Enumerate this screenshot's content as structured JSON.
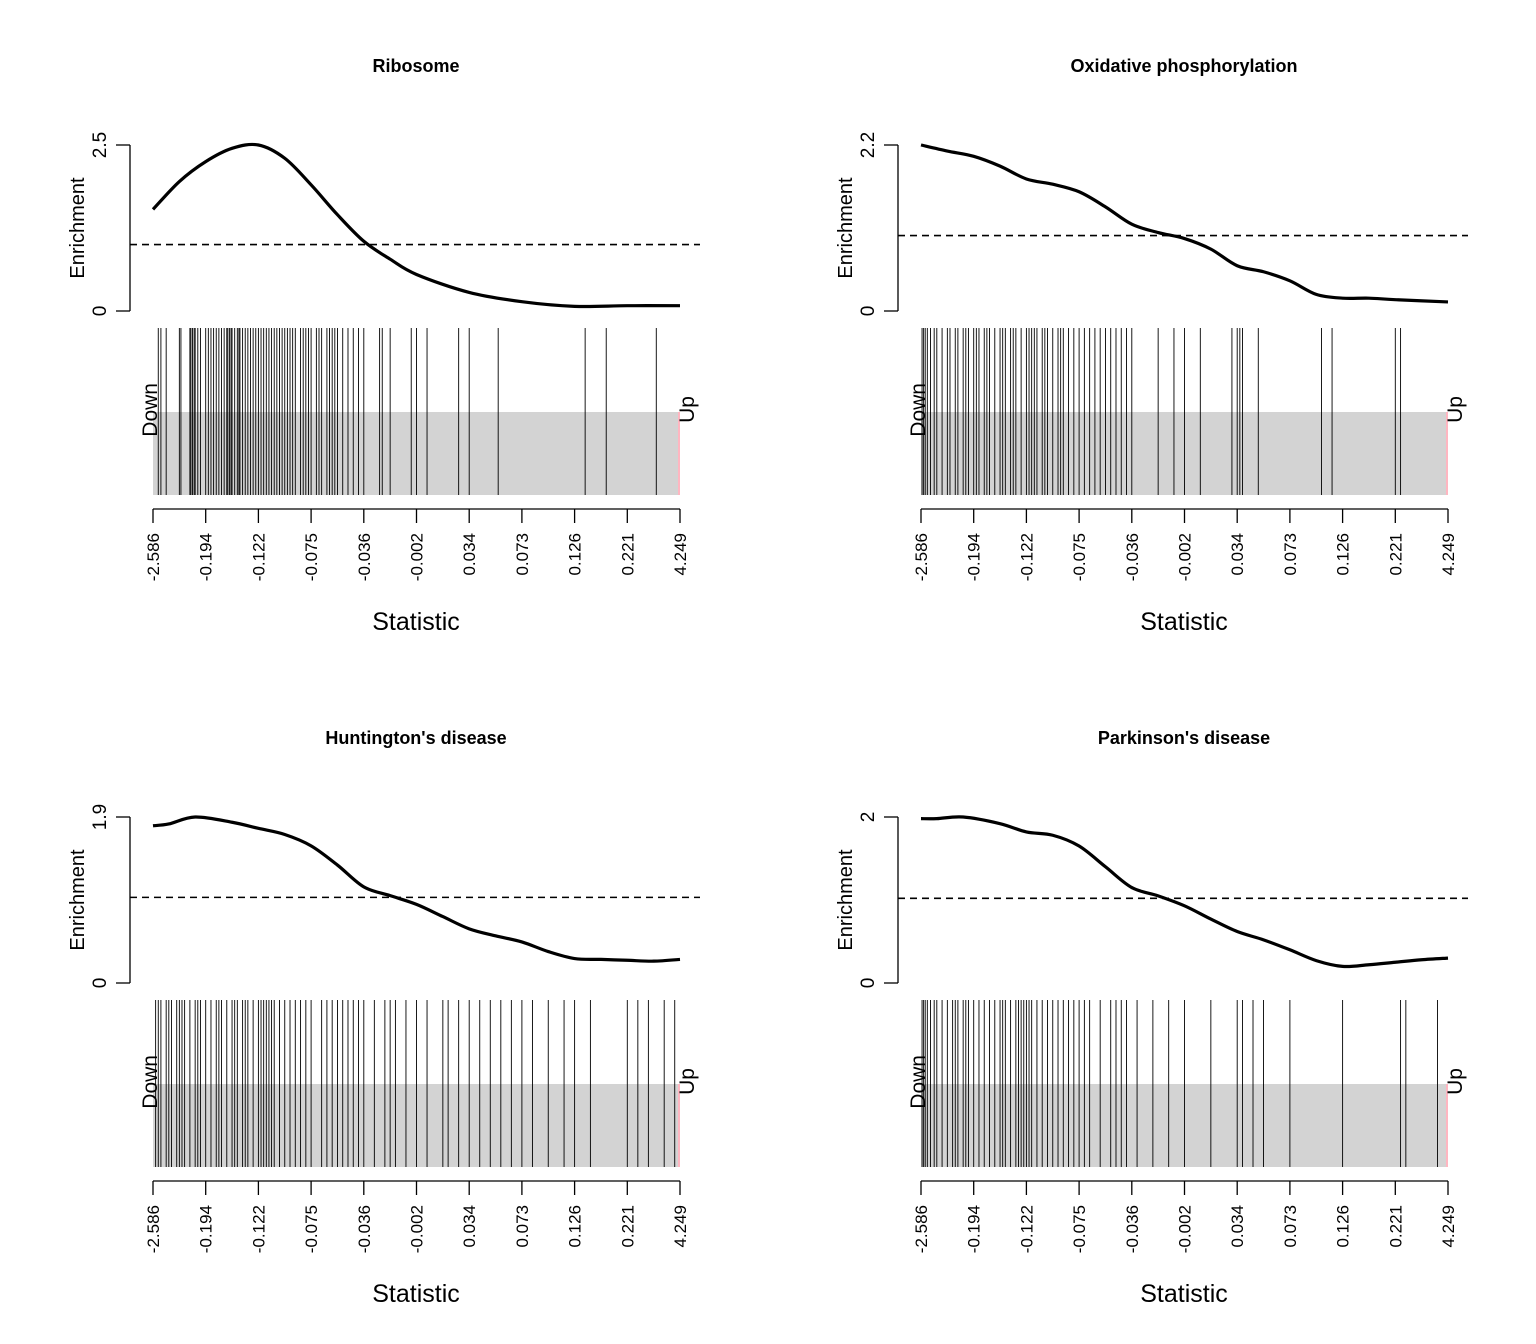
{
  "figure": {
    "ylabel": "Enrichment",
    "xlabel": "Statistic",
    "direction_labels": {
      "down": "Down",
      "up": "Up"
    },
    "colors": {
      "band": "#d3d3d3",
      "curve": "#000000",
      "barcode": "#000000",
      "up_edge": "#ffb6c1"
    }
  },
  "chart_data": [
    {
      "type": "line",
      "title": "Ribosome",
      "xlabel": "Statistic",
      "ylabel": "Enrichment",
      "ylim": [
        0,
        2.5
      ],
      "y_ticks": [
        "0",
        "2.5"
      ],
      "x_tick_labels": [
        "-2.586",
        "-0.194",
        "-0.122",
        "-0.075",
        "-0.036",
        "-0.002",
        "0.034",
        "0.073",
        "0.126",
        "0.221",
        "4.249"
      ],
      "reference_line": 1.0,
      "curve": {
        "x": [
          0,
          0.05,
          0.1,
          0.15,
          0.2,
          0.25,
          0.3,
          0.35,
          0.4,
          0.45,
          0.5,
          0.6,
          0.7,
          0.8,
          0.9,
          1.0
        ],
        "y": [
          1.53,
          1.95,
          2.25,
          2.45,
          2.5,
          2.3,
          1.9,
          1.45,
          1.05,
          0.78,
          0.55,
          0.28,
          0.14,
          0.07,
          0.08,
          0.08
        ]
      },
      "barcode": [
        0.01,
        0.015,
        0.025,
        0.05,
        0.053,
        0.07,
        0.072,
        0.075,
        0.078,
        0.08,
        0.085,
        0.09,
        0.1,
        0.105,
        0.11,
        0.115,
        0.12,
        0.125,
        0.13,
        0.135,
        0.14,
        0.142,
        0.145,
        0.148,
        0.15,
        0.155,
        0.16,
        0.163,
        0.165,
        0.17,
        0.175,
        0.18,
        0.185,
        0.19,
        0.195,
        0.2,
        0.205,
        0.21,
        0.215,
        0.22,
        0.225,
        0.23,
        0.235,
        0.24,
        0.245,
        0.25,
        0.255,
        0.26,
        0.265,
        0.27,
        0.28,
        0.285,
        0.29,
        0.295,
        0.3,
        0.31,
        0.315,
        0.32,
        0.33,
        0.335,
        0.34,
        0.345,
        0.35,
        0.36,
        0.37,
        0.38,
        0.39,
        0.4,
        0.43,
        0.435,
        0.45,
        0.49,
        0.5,
        0.52,
        0.58,
        0.6,
        0.655,
        0.82,
        0.86,
        0.955
      ],
      "up_edge": true
    },
    {
      "type": "line",
      "title": "Oxidative phosphorylation",
      "xlabel": "Statistic",
      "ylabel": "Enrichment",
      "ylim": [
        0,
        2.2
      ],
      "y_ticks": [
        "0",
        "2.2"
      ],
      "x_tick_labels": [
        "-2.586",
        "-0.194",
        "-0.122",
        "-0.075",
        "-0.036",
        "-0.002",
        "0.034",
        "0.073",
        "0.126",
        "0.221",
        "4.249"
      ],
      "reference_line": 1.0,
      "curve": {
        "x": [
          0,
          0.05,
          0.1,
          0.15,
          0.2,
          0.25,
          0.3,
          0.35,
          0.4,
          0.45,
          0.5,
          0.55,
          0.6,
          0.65,
          0.7,
          0.75,
          0.8,
          0.85,
          0.9,
          1.0
        ],
        "y": [
          2.2,
          2.12,
          2.05,
          1.92,
          1.75,
          1.68,
          1.58,
          1.38,
          1.15,
          1.04,
          0.96,
          0.82,
          0.6,
          0.52,
          0.4,
          0.22,
          0.17,
          0.17,
          0.15,
          0.12
        ]
      },
      "barcode": [
        0.002,
        0.005,
        0.008,
        0.012,
        0.018,
        0.025,
        0.03,
        0.04,
        0.05,
        0.055,
        0.065,
        0.07,
        0.08,
        0.085,
        0.09,
        0.1,
        0.105,
        0.11,
        0.12,
        0.125,
        0.13,
        0.14,
        0.15,
        0.155,
        0.16,
        0.17,
        0.175,
        0.18,
        0.19,
        0.2,
        0.205,
        0.21,
        0.215,
        0.22,
        0.23,
        0.235,
        0.24,
        0.25,
        0.26,
        0.265,
        0.27,
        0.28,
        0.29,
        0.3,
        0.31,
        0.32,
        0.33,
        0.34,
        0.35,
        0.36,
        0.37,
        0.38,
        0.39,
        0.4,
        0.45,
        0.48,
        0.5,
        0.53,
        0.59,
        0.6,
        0.605,
        0.61,
        0.64,
        0.76,
        0.78,
        0.9,
        0.91
      ],
      "up_edge": true
    },
    {
      "type": "line",
      "title": "Huntington's disease",
      "xlabel": "Statistic",
      "ylabel": "Enrichment",
      "ylim": [
        0,
        1.9
      ],
      "y_ticks": [
        "0",
        "1.9"
      ],
      "x_tick_labels": [
        "-2.586",
        "-0.194",
        "-0.122",
        "-0.075",
        "-0.036",
        "-0.002",
        "0.034",
        "0.073",
        "0.126",
        "0.221",
        "4.249"
      ],
      "reference_line": 0.98,
      "curve": {
        "x": [
          0,
          0.03,
          0.08,
          0.15,
          0.2,
          0.25,
          0.3,
          0.35,
          0.4,
          0.45,
          0.5,
          0.55,
          0.6,
          0.65,
          0.7,
          0.75,
          0.8,
          0.85,
          0.9,
          0.95,
          1.0
        ],
        "y": [
          1.8,
          1.82,
          1.9,
          1.84,
          1.77,
          1.7,
          1.57,
          1.35,
          1.1,
          1.0,
          0.9,
          0.76,
          0.62,
          0.54,
          0.47,
          0.36,
          0.28,
          0.27,
          0.26,
          0.25,
          0.27
        ]
      },
      "barcode": [
        0.005,
        0.01,
        0.015,
        0.025,
        0.03,
        0.035,
        0.045,
        0.05,
        0.055,
        0.06,
        0.07,
        0.08,
        0.085,
        0.09,
        0.1,
        0.11,
        0.12,
        0.125,
        0.13,
        0.14,
        0.15,
        0.155,
        0.16,
        0.17,
        0.175,
        0.18,
        0.19,
        0.2,
        0.205,
        0.21,
        0.215,
        0.22,
        0.225,
        0.23,
        0.24,
        0.25,
        0.26,
        0.27,
        0.28,
        0.29,
        0.3,
        0.32,
        0.33,
        0.34,
        0.35,
        0.36,
        0.37,
        0.38,
        0.39,
        0.4,
        0.42,
        0.44,
        0.45,
        0.46,
        0.48,
        0.5,
        0.52,
        0.55,
        0.56,
        0.58,
        0.6,
        0.62,
        0.64,
        0.66,
        0.68,
        0.7,
        0.72,
        0.75,
        0.78,
        0.8,
        0.83,
        0.9,
        0.92,
        0.94,
        0.97,
        0.99
      ],
      "up_edge": true
    },
    {
      "type": "line",
      "title": "Parkinson's disease",
      "xlabel": "Statistic",
      "ylabel": "Enrichment",
      "ylim": [
        0,
        2
      ],
      "y_ticks": [
        "0",
        "2"
      ],
      "x_tick_labels": [
        "-2.586",
        "-0.194",
        "-0.122",
        "-0.075",
        "-0.036",
        "-0.002",
        "0.034",
        "0.073",
        "0.126",
        "0.221",
        "4.249"
      ],
      "reference_line": 1.02,
      "curve": {
        "x": [
          0,
          0.03,
          0.08,
          0.15,
          0.2,
          0.25,
          0.3,
          0.35,
          0.4,
          0.45,
          0.5,
          0.55,
          0.6,
          0.65,
          0.7,
          0.75,
          0.8,
          0.85,
          0.9,
          0.95,
          1.0
        ],
        "y": [
          1.98,
          1.98,
          2.0,
          1.92,
          1.82,
          1.78,
          1.65,
          1.4,
          1.15,
          1.05,
          0.93,
          0.77,
          0.62,
          0.52,
          0.4,
          0.27,
          0.2,
          0.22,
          0.25,
          0.28,
          0.3
        ]
      },
      "barcode": [
        0.002,
        0.005,
        0.008,
        0.012,
        0.018,
        0.025,
        0.03,
        0.04,
        0.05,
        0.06,
        0.065,
        0.07,
        0.08,
        0.085,
        0.09,
        0.1,
        0.11,
        0.12,
        0.13,
        0.14,
        0.15,
        0.155,
        0.16,
        0.17,
        0.18,
        0.185,
        0.19,
        0.195,
        0.2,
        0.205,
        0.21,
        0.22,
        0.23,
        0.24,
        0.25,
        0.26,
        0.27,
        0.28,
        0.29,
        0.3,
        0.31,
        0.32,
        0.34,
        0.36,
        0.37,
        0.38,
        0.39,
        0.41,
        0.44,
        0.47,
        0.5,
        0.55,
        0.6,
        0.61,
        0.63,
        0.65,
        0.7,
        0.8,
        0.91,
        0.92,
        0.98
      ],
      "up_edge": true
    }
  ]
}
